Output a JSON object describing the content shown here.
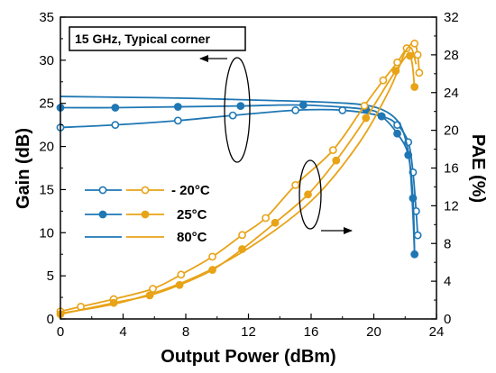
{
  "chart_data": {
    "type": "line",
    "annotation": "15 GHz, Typical corner",
    "xlabel": "Output Power (dBm)",
    "ylabel_left": "Gain (dB)",
    "ylabel_right": "PAE (%)",
    "xlim": [
      0,
      24
    ],
    "ylim_left": [
      0,
      35
    ],
    "ylim_right": [
      0,
      32
    ],
    "xticks": [
      "0",
      "4",
      "8",
      "12",
      "16",
      "20",
      "24"
    ],
    "yticks_left": [
      "0",
      "5",
      "10",
      "15",
      "20",
      "25",
      "30",
      "35"
    ],
    "yticks_right": [
      "0",
      "4",
      "8",
      "12",
      "16",
      "20",
      "24",
      "28",
      "32"
    ],
    "legend": {
      "placement": "middle-left",
      "entries": [
        {
          "label": "- 20°C",
          "marker": "open-circle"
        },
        {
          "label": "25°C",
          "marker": "filled-circle"
        },
        {
          "label": "80°C",
          "marker": "none"
        }
      ]
    },
    "colors": {
      "gain": "#1f77b4",
      "pae": "#e8a317"
    },
    "series": [
      {
        "metric": "Gain",
        "axis": "left",
        "temperature": "-20",
        "marker": "open",
        "x": [
          0,
          3.5,
          7.5,
          11,
          15,
          18,
          20.5,
          21.5,
          22.2,
          22.5,
          22.7,
          22.8
        ],
        "y": [
          22.2,
          22.5,
          23,
          23.6,
          24.2,
          24.2,
          23.5,
          22.5,
          20.5,
          17,
          12.5,
          9.7
        ]
      },
      {
        "metric": "Gain",
        "axis": "left",
        "temperature": "25",
        "marker": "filled",
        "x": [
          0,
          3.5,
          7.5,
          11.5,
          15.5,
          19.5,
          20.5,
          21.5,
          22.2,
          22.5,
          22.6
        ],
        "y": [
          24.5,
          24.5,
          24.6,
          24.7,
          24.8,
          24.3,
          23.5,
          21.5,
          19,
          14,
          7.5
        ]
      },
      {
        "metric": "Gain",
        "axis": "left",
        "temperature": "80",
        "marker": "none",
        "x": [
          0,
          4,
          8,
          12,
          16,
          19,
          20.5,
          21.5,
          22,
          22.3,
          22.5,
          22.6
        ],
        "y": [
          25.8,
          25.7,
          25.6,
          25.4,
          25.2,
          24.9,
          24.3,
          23,
          21,
          18,
          12,
          7.5
        ]
      },
      {
        "metric": "PAE",
        "axis": "right",
        "temperature": "-20",
        "marker": "open",
        "x": [
          0,
          1.3,
          3.4,
          5.9,
          7.7,
          9.7,
          11.6,
          13.1,
          15,
          17.4,
          19.4,
          20.6,
          21.5,
          22.1,
          22.6,
          22.8,
          22.9
        ],
        "y": [
          0.8,
          1.3,
          2.1,
          3.2,
          4.7,
          6.6,
          8.9,
          10.7,
          14.2,
          17.9,
          22.6,
          25.3,
          27.2,
          28.7,
          29.2,
          28,
          26.1
        ]
      },
      {
        "metric": "PAE",
        "axis": "right",
        "temperature": "25",
        "marker": "filled",
        "x": [
          0,
          3.4,
          5.7,
          7.6,
          9.7,
          11.6,
          13.7,
          15.8,
          17.6,
          19.5,
          21.4,
          22.3,
          22.6
        ],
        "y": [
          0.5,
          1.7,
          2.5,
          3.6,
          5.2,
          7.4,
          10.2,
          13.2,
          16.8,
          21.3,
          26.3,
          27.9,
          24.6
        ]
      },
      {
        "metric": "PAE",
        "axis": "right",
        "temperature": "80",
        "marker": "none",
        "x": [
          0,
          4,
          8,
          12,
          16,
          19,
          21,
          22,
          22.4,
          22.7
        ],
        "y": [
          0.6,
          1.8,
          4,
          7.5,
          12.5,
          18.5,
          24.3,
          28.3,
          28.7,
          27
        ]
      }
    ],
    "annotation_arrows": [
      {
        "points_to": "left-axis",
        "ellipse_center": [
          12.1,
          24.5
        ],
        "axis": "left"
      },
      {
        "points_to": "right-axis",
        "ellipse_center": [
          16.5,
          15.5
        ],
        "axis": "left"
      }
    ]
  }
}
